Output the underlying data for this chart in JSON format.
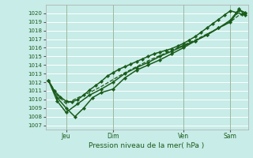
{
  "bg_color": "#c8ece8",
  "grid_color": "#ffffff",
  "line_color": "#1a5c1a",
  "xlabel": "Pression niveau de la mer( hPa )",
  "ylim": [
    1006.5,
    1021.0
  ],
  "yticks": [
    1007,
    1008,
    1009,
    1010,
    1011,
    1012,
    1013,
    1014,
    1015,
    1016,
    1017,
    1018,
    1019,
    1020
  ],
  "xlim": [
    -1,
    68
  ],
  "xtick_positions": [
    6,
    22,
    46,
    62
  ],
  "xtick_labels": [
    "Jeu",
    "Dim",
    "Ven",
    "Sam"
  ],
  "vline_positions": [
    6,
    22,
    46,
    62
  ],
  "lines": [
    {
      "x": [
        0,
        2,
        4,
        6,
        8,
        10,
        12,
        14,
        16,
        18,
        20,
        22,
        24,
        26,
        28,
        30,
        32,
        34,
        36,
        38,
        40,
        42,
        44,
        46,
        48,
        50,
        52,
        54,
        56,
        58,
        60,
        62,
        64,
        66,
        67
      ],
      "y": [
        1012.2,
        1011.0,
        1010.3,
        1009.8,
        1009.7,
        1010.0,
        1010.5,
        1011.1,
        1011.6,
        1012.1,
        1012.7,
        1013.1,
        1013.5,
        1013.8,
        1014.1,
        1014.4,
        1014.7,
        1015.0,
        1015.3,
        1015.5,
        1015.7,
        1015.9,
        1016.2,
        1016.5,
        1016.9,
        1017.3,
        1017.8,
        1018.3,
        1018.8,
        1019.3,
        1019.8,
        1020.3,
        1020.1,
        1019.9,
        1020.0
      ],
      "ls": "-",
      "marker": "D",
      "lw": 1.1,
      "ms": 2.2,
      "zorder": 4
    },
    {
      "x": [
        0,
        3,
        6,
        9,
        12,
        15,
        18,
        22,
        26,
        30,
        34,
        38,
        42,
        46,
        50,
        54,
        58,
        62,
        65,
        67
      ],
      "y": [
        1012.2,
        1010.2,
        1009.0,
        1008.0,
        1009.0,
        1010.2,
        1010.8,
        1011.2,
        1012.5,
        1013.4,
        1014.0,
        1014.6,
        1015.3,
        1016.0,
        1016.8,
        1017.5,
        1018.3,
        1019.2,
        1020.5,
        1019.8
      ],
      "ls": "-",
      "marker": "D",
      "lw": 1.1,
      "ms": 2.2,
      "zorder": 4
    },
    {
      "x": [
        0,
        3,
        6,
        10,
        14,
        18,
        22,
        26,
        30,
        34,
        38,
        42,
        46,
        50,
        54,
        58,
        62,
        65,
        67
      ],
      "y": [
        1012.2,
        1009.8,
        1008.5,
        1009.5,
        1010.5,
        1011.2,
        1012.0,
        1013.0,
        1013.7,
        1014.3,
        1015.0,
        1015.6,
        1016.2,
        1016.8,
        1017.5,
        1018.3,
        1019.0,
        1020.4,
        1020.1
      ],
      "ls": "-",
      "marker": "D",
      "lw": 1.1,
      "ms": 2.2,
      "zorder": 3
    },
    {
      "x": [
        0,
        3,
        6,
        10,
        14,
        18,
        22,
        26,
        30,
        34,
        38,
        42,
        46,
        50,
        54,
        58,
        62,
        65,
        67
      ],
      "y": [
        1012.2,
        1010.5,
        1009.5,
        1010.2,
        1010.8,
        1011.5,
        1012.3,
        1013.1,
        1013.8,
        1014.5,
        1015.1,
        1015.7,
        1016.3,
        1016.9,
        1017.6,
        1018.3,
        1019.0,
        1019.8,
        1019.9
      ],
      "ls": "--",
      "marker": null,
      "lw": 0.9,
      "ms": 0,
      "zorder": 2
    }
  ]
}
